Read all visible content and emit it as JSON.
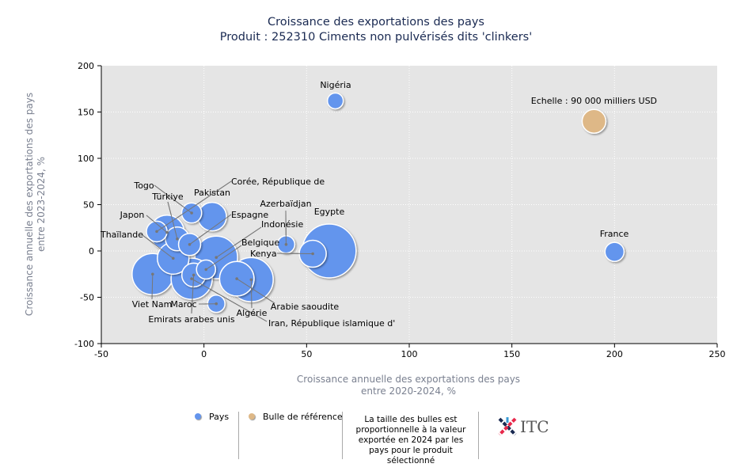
{
  "chart_data": {
    "type": "bubble",
    "title": "Croissance des exportations des pays",
    "subtitle": "Produit : 252310 Ciments non pulvérisés dits 'clinkers'",
    "xlabel": [
      "Croissance annuelle des exportations des pays",
      "entre 2020-2024, %"
    ],
    "ylabel": [
      "Croissance annuelle des exportations des pays",
      "entre 2023-2024, %"
    ],
    "xlim": [
      -50,
      250
    ],
    "ylim": [
      -100,
      200
    ],
    "xticks": [
      -50,
      0,
      50,
      100,
      150,
      200,
      250
    ],
    "yticks": [
      -100,
      -50,
      0,
      50,
      100,
      150,
      200
    ],
    "grid": true,
    "colors": {
      "country": "#6495ed",
      "reference": "#deb887"
    },
    "points": [
      {
        "name": "Nigéria",
        "x": 64,
        "y": 162,
        "value": 40000
      },
      {
        "name": "France",
        "x": 200,
        "y": -1,
        "value": 58000
      },
      {
        "name": "Egypte",
        "x": 61,
        "y": 0,
        "value": 462000
      },
      {
        "name": "Kenya",
        "x": 53,
        "y": -3,
        "value": 116000
      },
      {
        "name": "Azerbaïdjan",
        "x": 40,
        "y": 7,
        "value": 48000
      },
      {
        "name": "Pakistan",
        "x": 4,
        "y": 37,
        "value": 130000
      },
      {
        "name": "Togo",
        "x": -6,
        "y": 41,
        "value": 64000
      },
      {
        "name": "Japon",
        "x": -18,
        "y": 20,
        "value": 190000
      },
      {
        "name": "Corée, République de",
        "x": -23,
        "y": 21,
        "value": 68000
      },
      {
        "name": "Türkiye",
        "x": -13,
        "y": 13,
        "value": 90000
      },
      {
        "name": "Espagne",
        "x": -7,
        "y": 7,
        "value": 78000
      },
      {
        "name": "Thaïlande",
        "x": -15,
        "y": -8,
        "value": 160000
      },
      {
        "name": "Indonésie",
        "x": 6,
        "y": -7,
        "value": 290000
      },
      {
        "name": "Viet Nam",
        "x": -25,
        "y": -25,
        "value": 270000
      },
      {
        "name": "Iran, République islamique d'",
        "x": -6,
        "y": -30,
        "value": 270000
      },
      {
        "name": "Emirats arabes unis",
        "x": -5,
        "y": -26,
        "value": 90000
      },
      {
        "name": "Belgique",
        "x": 1,
        "y": -20,
        "value": 58000
      },
      {
        "name": "Algérie",
        "x": 23,
        "y": -31,
        "value": 310000
      },
      {
        "name": "Arabie saoudite",
        "x": 16,
        "y": -30,
        "value": 190000
      },
      {
        "name": "Maroc",
        "x": 6,
        "y": -57,
        "value": 48000
      }
    ],
    "reference": {
      "label": "Echelle : 90 000 milliers USD",
      "x": 190,
      "y": 140,
      "value": 90000
    }
  },
  "legend": {
    "country": "Pays",
    "reference": "Bulle de référence",
    "note": [
      "La taille des bulles est",
      "proportionnelle à la valeur",
      "exportée en 2024 par les",
      "pays pour le produit sélectionné"
    ],
    "logo": "ITC"
  }
}
